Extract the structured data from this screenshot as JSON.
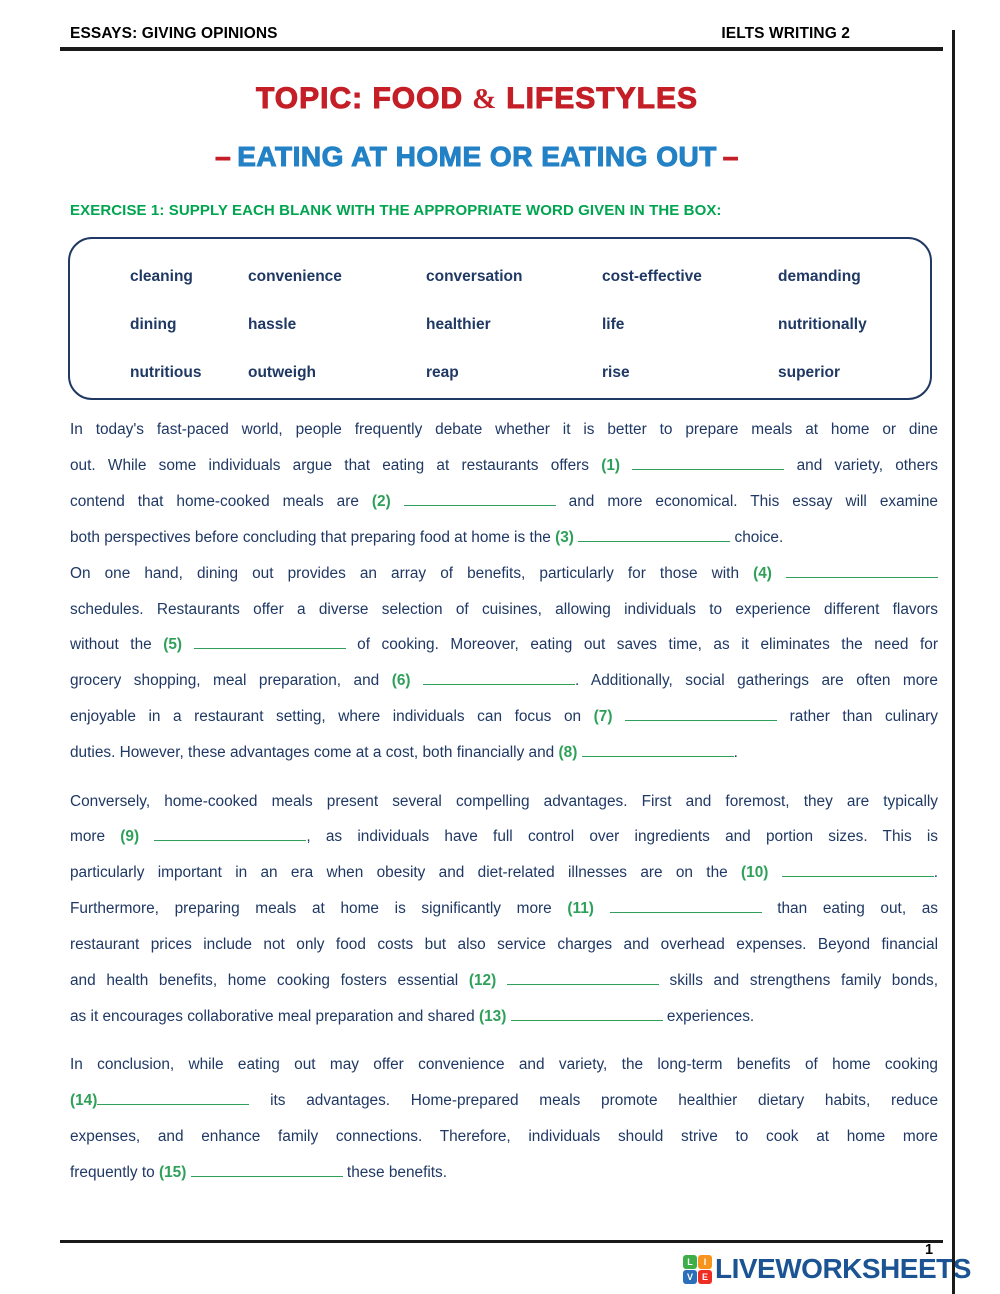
{
  "header": {
    "left": "ESSAYS: GIVING OPINIONS",
    "right": "IELTS WRITING 2"
  },
  "title": {
    "part1": "TOPIC: FOOD",
    "amp": "&",
    "part2": "LIFESTYLES"
  },
  "subtitle": {
    "dash": "–",
    "text": "EATING AT HOME OR EATING OUT"
  },
  "exercise_heading": "EXERCISE 1: SUPPLY EACH BLANK WITH THE APPROPRIATE WORD GIVEN IN THE BOX:",
  "word_box": {
    "rows": [
      [
        "cleaning",
        "convenience",
        "conversation",
        "cost-effective",
        "demanding"
      ],
      [
        "dining",
        "hassle",
        "healthier",
        "life",
        "nutritionally"
      ],
      [
        "nutritious",
        "outweigh",
        "reap",
        "rise",
        "superior"
      ]
    ]
  },
  "essay": {
    "paragraphs": [
      [
        "In today's fast-paced world, people frequently debate whether it is better to prepare meals at home or dine",
        "out. While some individuals argue that eating at restaurants offers {{1}} and variety, others",
        "contend that home-cooked meals are {{2}} and more economical. This essay will examine",
        "both perspectives before concluding that preparing food at home is the {{3}} choice."
      ],
      [
        "On one hand, dining out provides an array of benefits, particularly for those with {{4}}",
        "schedules. Restaurants offer a diverse selection of cuisines, allowing individuals to experience different flavors",
        "without the {{5}} of cooking. Moreover, eating out saves time, as it eliminates the need for",
        "grocery shopping, meal preparation, and {{6}}. Additionally, social gatherings are often more",
        "enjoyable in a restaurant setting, where individuals can focus on {{7}} rather than culinary",
        "duties. However, these advantages come at a cost, both financially and {{8}}."
      ],
      [
        "Conversely, home-cooked meals present several compelling advantages. First and foremost, they are typically",
        "more {{9}}, as individuals have full control over ingredients and portion sizes. This is",
        "particularly important in an era when obesity and diet-related illnesses are on the {{10}}.",
        "Furthermore, preparing meals at home is significantly more {{11}} than eating out, as",
        "restaurant prices include not only food costs but also service charges and overhead expenses. Beyond financial",
        "and health benefits, home cooking fosters essential {{12}} skills and strengthens family bonds,",
        "as it encourages collaborative meal preparation and shared {{13}} experiences."
      ],
      [
        "In conclusion, while eating out may offer convenience and variety, the long-term benefits of home cooking",
        "{{14*}} its advantages. Home-prepared meals promote healthier dietary habits, reduce",
        "expenses, and enhance family connections. Therefore, individuals should strive to cook at home more",
        "frequently to {{15}} these benefits."
      ]
    ]
  },
  "footer": {
    "page_number": "1",
    "logo": {
      "squares": [
        {
          "letter": "L",
          "color": "#3fae49"
        },
        {
          "letter": "I",
          "color": "#f7941e"
        },
        {
          "letter": "V",
          "color": "#2b6fba"
        },
        {
          "letter": "E",
          "color": "#ee2e24"
        }
      ],
      "text": "LIVEWORKSHEETS"
    }
  },
  "colors": {
    "title_red": "#c41e26",
    "subtitle_blue": "#2381c5",
    "body_text": "#1f3864",
    "heading_green": "#00a550",
    "marker_green": "#2fa05a",
    "box_border_navy": "#1f3864",
    "logo_text_blue": "#1b5393",
    "line_black": "#1a1a1a"
  }
}
